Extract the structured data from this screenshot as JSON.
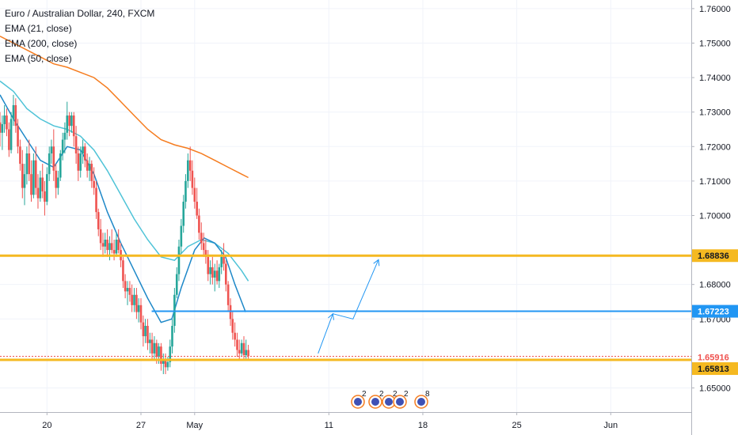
{
  "legend": {
    "title": "Euro / Australian Dollar, 240, FXCM",
    "indicators": [
      "EMA (21, close)",
      "EMA (200, close)",
      "EMA (50, close)"
    ]
  },
  "colors": {
    "up": "#26a69a",
    "down": "#ef5350",
    "ema21": "#1e88c8",
    "ema50": "#4fc3d7",
    "ema200": "#f57c1f",
    "resistance": "#f5b921",
    "support_blue": "#2196f3",
    "current_price": "#ef5350"
  },
  "chart_data": {
    "type": "candlestick",
    "symbol": "EURAUD",
    "timeframe": "240",
    "ylim": [
      1.643,
      1.7625
    ],
    "y_ticks": [
      "1.76000",
      "1.75000",
      "1.74000",
      "1.73000",
      "1.72000",
      "1.71000",
      "1.70000",
      "1.68000",
      "1.67000",
      "1.65000"
    ],
    "x_ticks": [
      "20",
      "27",
      "May",
      "11",
      "18",
      "25",
      "Jun"
    ],
    "x_tick_days": [
      0,
      7,
      11,
      21,
      28,
      35,
      42
    ],
    "x_range_days": [
      -3.5,
      48
    ],
    "levels": [
      {
        "price": 1.68836,
        "label": "1.68836",
        "color": "resistance"
      },
      {
        "price": 1.67223,
        "label": "1.67223",
        "color": "support_blue"
      },
      {
        "price": 1.65916,
        "label": "1.65916",
        "color": "current_price"
      },
      {
        "price": 1.65813,
        "label": "1.65813",
        "color": "resistance"
      }
    ],
    "projection": [
      [
        20.2,
        1.66
      ],
      [
        21.3,
        1.6715
      ],
      [
        22.8,
        1.67
      ],
      [
        24.7,
        1.6872
      ]
    ],
    "event_markers": [
      "2",
      "2",
      "2",
      "2",
      "8"
    ],
    "candles": [
      [
        -3.5,
        1.727,
        1.73,
        1.72,
        1.724
      ],
      [
        -3.33,
        1.724,
        1.729,
        1.719,
        1.7265
      ],
      [
        -3.17,
        1.7265,
        1.732,
        1.724,
        1.729
      ],
      [
        -3.0,
        1.729,
        1.731,
        1.723,
        1.725
      ],
      [
        -2.83,
        1.725,
        1.727,
        1.717,
        1.719
      ],
      [
        -2.67,
        1.719,
        1.73,
        1.718,
        1.728
      ],
      [
        -2.5,
        1.728,
        1.735,
        1.726,
        1.732
      ],
      [
        -2.33,
        1.732,
        1.734,
        1.724,
        1.726
      ],
      [
        -2.17,
        1.726,
        1.728,
        1.718,
        1.72
      ],
      [
        -2.0,
        1.72,
        1.722,
        1.713,
        1.715
      ],
      [
        -1.83,
        1.715,
        1.719,
        1.705,
        1.708
      ],
      [
        -1.67,
        1.708,
        1.715,
        1.703,
        1.712
      ],
      [
        -1.5,
        1.712,
        1.72,
        1.709,
        1.718
      ],
      [
        -1.33,
        1.718,
        1.722,
        1.71,
        1.712
      ],
      [
        -1.17,
        1.712,
        1.716,
        1.704,
        1.706
      ],
      [
        -1.0,
        1.706,
        1.718,
        1.705,
        1.716
      ],
      [
        -0.83,
        1.716,
        1.72,
        1.706,
        1.708
      ],
      [
        -0.67,
        1.708,
        1.712,
        1.702,
        1.705
      ],
      [
        -0.5,
        1.705,
        1.713,
        1.704,
        1.711
      ],
      [
        -0.33,
        1.711,
        1.715,
        1.705,
        1.707
      ],
      [
        -0.17,
        1.707,
        1.71,
        1.7,
        1.704
      ],
      [
        0.0,
        1.704,
        1.714,
        1.703,
        1.712
      ],
      [
        0.17,
        1.712,
        1.72,
        1.71,
        1.718
      ],
      [
        0.33,
        1.718,
        1.722,
        1.715,
        1.72
      ],
      [
        0.5,
        1.72,
        1.725,
        1.71,
        1.713
      ],
      [
        0.67,
        1.713,
        1.715,
        1.705,
        1.708
      ],
      [
        0.83,
        1.708,
        1.713,
        1.706,
        1.711
      ],
      [
        1.0,
        1.711,
        1.719,
        1.71,
        1.718
      ],
      [
        1.17,
        1.718,
        1.724,
        1.716,
        1.722
      ],
      [
        1.33,
        1.722,
        1.727,
        1.718,
        1.724
      ],
      [
        1.5,
        1.724,
        1.733,
        1.722,
        1.729
      ],
      [
        1.67,
        1.729,
        1.73,
        1.723,
        1.726
      ],
      [
        1.83,
        1.726,
        1.73,
        1.724,
        1.729
      ],
      [
        2.0,
        1.729,
        1.73,
        1.72,
        1.723
      ],
      [
        2.17,
        1.723,
        1.726,
        1.715,
        1.718
      ],
      [
        2.33,
        1.718,
        1.72,
        1.71,
        1.713
      ],
      [
        2.5,
        1.713,
        1.72,
        1.711,
        1.718
      ],
      [
        2.67,
        1.718,
        1.722,
        1.715,
        1.72
      ],
      [
        2.83,
        1.72,
        1.721,
        1.714,
        1.716
      ],
      [
        3.0,
        1.716,
        1.718,
        1.711,
        1.713
      ],
      [
        3.17,
        1.713,
        1.717,
        1.71,
        1.715
      ],
      [
        3.33,
        1.715,
        1.716,
        1.708,
        1.71
      ],
      [
        3.5,
        1.71,
        1.714,
        1.706,
        1.708
      ],
      [
        3.67,
        1.708,
        1.71,
        1.699,
        1.701
      ],
      [
        3.83,
        1.701,
        1.702,
        1.694,
        1.696
      ],
      [
        4.0,
        1.696,
        1.699,
        1.69,
        1.692
      ],
      [
        4.17,
        1.692,
        1.695,
        1.688,
        1.691
      ],
      [
        4.33,
        1.691,
        1.695,
        1.689,
        1.693
      ],
      [
        4.5,
        1.693,
        1.696,
        1.688,
        1.69
      ],
      [
        4.67,
        1.69,
        1.694,
        1.687,
        1.692
      ],
      [
        4.83,
        1.692,
        1.696,
        1.689,
        1.69
      ],
      [
        5.0,
        1.69,
        1.693,
        1.687,
        1.689
      ],
      [
        5.17,
        1.689,
        1.695,
        1.688,
        1.693
      ],
      [
        5.33,
        1.693,
        1.696,
        1.689,
        1.69
      ],
      [
        5.5,
        1.69,
        1.692,
        1.685,
        1.687
      ],
      [
        5.67,
        1.687,
        1.688,
        1.679,
        1.681
      ],
      [
        5.83,
        1.681,
        1.683,
        1.676,
        1.678
      ],
      [
        6.0,
        1.678,
        1.681,
        1.674,
        1.679
      ],
      [
        6.17,
        1.679,
        1.681,
        1.675,
        1.677
      ],
      [
        6.33,
        1.677,
        1.68,
        1.672,
        1.674
      ],
      [
        6.5,
        1.674,
        1.679,
        1.672,
        1.677
      ],
      [
        6.67,
        1.677,
        1.679,
        1.67,
        1.672
      ],
      [
        6.83,
        1.672,
        1.676,
        1.669,
        1.674
      ],
      [
        7.0,
        1.674,
        1.676,
        1.667,
        1.669
      ],
      [
        7.17,
        1.669,
        1.671,
        1.662,
        1.665
      ],
      [
        7.33,
        1.665,
        1.67,
        1.663,
        1.668
      ],
      [
        7.5,
        1.668,
        1.67,
        1.661,
        1.663
      ],
      [
        7.67,
        1.663,
        1.666,
        1.66,
        1.664
      ],
      [
        7.83,
        1.664,
        1.666,
        1.658,
        1.66
      ],
      [
        8.0,
        1.66,
        1.665,
        1.658,
        1.663
      ],
      [
        8.17,
        1.663,
        1.664,
        1.657,
        1.659
      ],
      [
        8.33,
        1.659,
        1.663,
        1.657,
        1.662
      ],
      [
        8.5,
        1.662,
        1.663,
        1.655,
        1.657
      ],
      [
        8.67,
        1.657,
        1.66,
        1.654,
        1.658
      ],
      [
        8.83,
        1.658,
        1.66,
        1.654,
        1.656
      ],
      [
        9.0,
        1.656,
        1.659,
        1.655,
        1.6575
      ],
      [
        9.17,
        1.6575,
        1.664,
        1.656,
        1.662
      ],
      [
        9.33,
        1.662,
        1.67,
        1.66,
        1.668
      ],
      [
        9.5,
        1.668,
        1.679,
        1.666,
        1.677
      ],
      [
        9.67,
        1.677,
        1.685,
        1.676,
        1.683
      ],
      [
        9.83,
        1.683,
        1.693,
        1.681,
        1.691
      ],
      [
        10.0,
        1.691,
        1.699,
        1.689,
        1.697
      ],
      [
        10.17,
        1.697,
        1.706,
        1.695,
        1.704
      ],
      [
        10.33,
        1.704,
        1.712,
        1.702,
        1.71
      ],
      [
        10.5,
        1.71,
        1.718,
        1.708,
        1.716
      ],
      [
        10.67,
        1.716,
        1.72,
        1.71,
        1.713
      ],
      [
        10.83,
        1.713,
        1.716,
        1.706,
        1.708
      ],
      [
        11.0,
        1.708,
        1.711,
        1.702,
        1.704
      ],
      [
        11.17,
        1.704,
        1.708,
        1.699,
        1.7
      ],
      [
        11.33,
        1.7,
        1.702,
        1.693,
        1.695
      ],
      [
        11.5,
        1.695,
        1.698,
        1.69,
        1.692
      ],
      [
        11.67,
        1.692,
        1.695,
        1.688,
        1.69
      ],
      [
        11.83,
        1.69,
        1.693,
        1.686,
        1.688
      ],
      [
        12.0,
        1.688,
        1.69,
        1.681,
        1.683
      ],
      [
        12.17,
        1.683,
        1.687,
        1.68,
        1.685
      ],
      [
        12.33,
        1.685,
        1.688,
        1.68,
        1.682
      ],
      [
        12.5,
        1.682,
        1.686,
        1.678,
        1.684
      ],
      [
        12.67,
        1.684,
        1.687,
        1.68,
        1.681
      ],
      [
        12.83,
        1.681,
        1.686,
        1.679,
        1.685
      ],
      [
        13.0,
        1.685,
        1.69,
        1.683,
        1.688
      ],
      [
        13.17,
        1.688,
        1.692,
        1.684,
        1.686
      ],
      [
        13.33,
        1.686,
        1.687,
        1.678,
        1.68
      ],
      [
        13.5,
        1.68,
        1.681,
        1.672,
        1.674
      ],
      [
        13.67,
        1.674,
        1.676,
        1.668,
        1.67
      ],
      [
        13.83,
        1.67,
        1.672,
        1.664,
        1.666
      ],
      [
        14.0,
        1.666,
        1.669,
        1.662,
        1.664
      ],
      [
        14.17,
        1.664,
        1.666,
        1.659,
        1.661
      ],
      [
        14.33,
        1.661,
        1.664,
        1.658,
        1.66
      ],
      [
        14.5,
        1.66,
        1.664,
        1.659,
        1.663
      ],
      [
        14.67,
        1.663,
        1.665,
        1.658,
        1.6595
      ],
      [
        14.83,
        1.6595,
        1.664,
        1.6585,
        1.661
      ],
      [
        15.0,
        1.661,
        1.6625,
        1.6585,
        1.6592
      ]
    ],
    "ema21": [
      [
        -3.5,
        1.735
      ],
      [
        -2.5,
        1.728
      ],
      [
        -1.5,
        1.722
      ],
      [
        -0.5,
        1.716
      ],
      [
        0.5,
        1.714
      ],
      [
        1.5,
        1.72
      ],
      [
        2.5,
        1.719
      ],
      [
        3.5,
        1.712
      ],
      [
        4.5,
        1.701
      ],
      [
        5.5,
        1.692
      ],
      [
        6.5,
        1.684
      ],
      [
        7.5,
        1.676
      ],
      [
        8.5,
        1.669
      ],
      [
        9.3,
        1.67
      ],
      [
        10.0,
        1.679
      ],
      [
        11.0,
        1.69
      ],
      [
        11.7,
        1.6935
      ],
      [
        12.5,
        1.692
      ],
      [
        13.3,
        1.688
      ],
      [
        14.0,
        1.68
      ],
      [
        14.8,
        1.672
      ]
    ],
    "ema50": [
      [
        -3.5,
        1.739
      ],
      [
        -2.5,
        1.736
      ],
      [
        -1.5,
        1.731
      ],
      [
        -0.5,
        1.728
      ],
      [
        0.5,
        1.726
      ],
      [
        1.5,
        1.725
      ],
      [
        2.5,
        1.723
      ],
      [
        3.5,
        1.719
      ],
      [
        4.5,
        1.713
      ],
      [
        5.5,
        1.706
      ],
      [
        6.5,
        1.699
      ],
      [
        7.5,
        1.693
      ],
      [
        8.5,
        1.688
      ],
      [
        9.5,
        1.687
      ],
      [
        10.5,
        1.691
      ],
      [
        11.5,
        1.693
      ],
      [
        12.5,
        1.692
      ],
      [
        13.5,
        1.689
      ],
      [
        14.5,
        1.684
      ],
      [
        15.0,
        1.681
      ]
    ],
    "ema200": [
      [
        -3.5,
        1.752
      ],
      [
        -2.5,
        1.75
      ],
      [
        -1.5,
        1.748
      ],
      [
        -0.5,
        1.746
      ],
      [
        0.5,
        1.744
      ],
      [
        1.5,
        1.743
      ],
      [
        2.5,
        1.7415
      ],
      [
        3.5,
        1.74
      ],
      [
        4.5,
        1.737
      ],
      [
        5.5,
        1.733
      ],
      [
        6.5,
        1.729
      ],
      [
        7.5,
        1.725
      ],
      [
        8.5,
        1.722
      ],
      [
        9.5,
        1.7205
      ],
      [
        10.5,
        1.7195
      ],
      [
        11.5,
        1.718
      ],
      [
        12.5,
        1.716
      ],
      [
        13.5,
        1.714
      ],
      [
        14.5,
        1.712
      ],
      [
        15.0,
        1.711
      ]
    ]
  }
}
